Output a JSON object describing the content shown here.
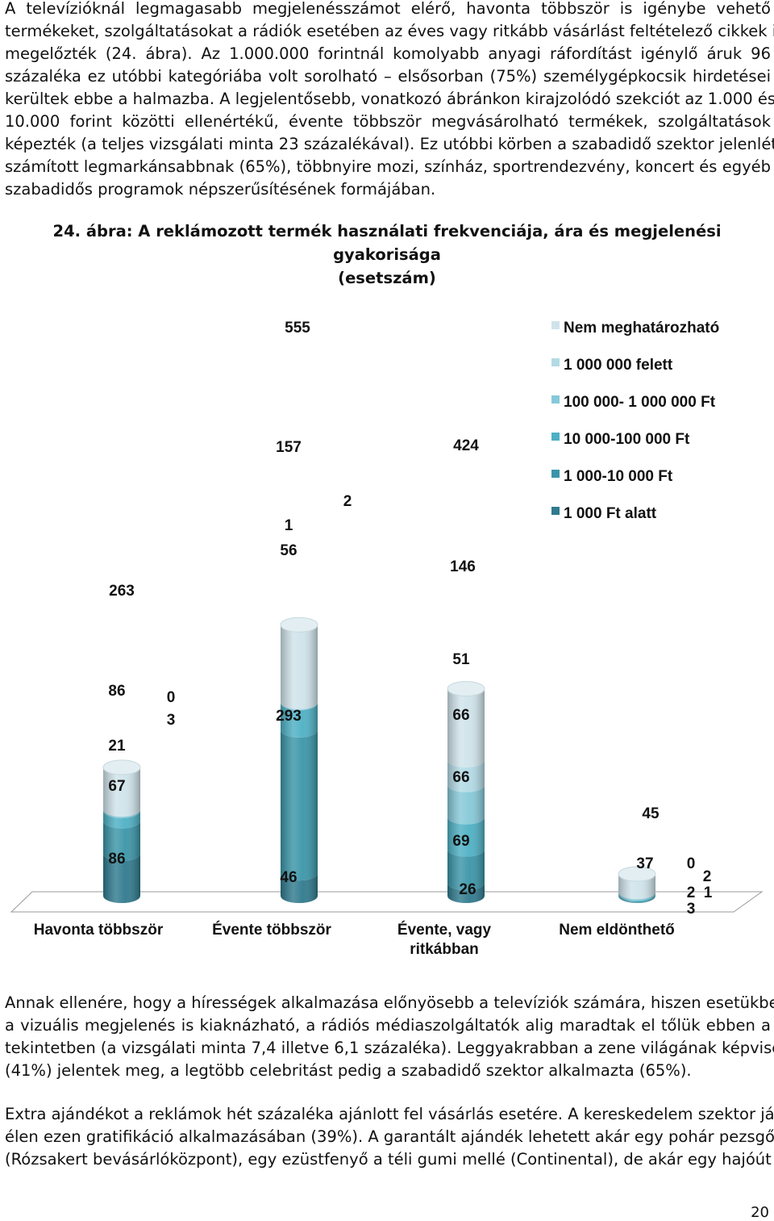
{
  "paragraphs": {
    "p1": [
      "A televízióknál legmagasabb megjelenésszámot elérő, havonta többször is igénybe vehető",
      "termékeket, szolgáltatásokat a rádiók esetében az éves vagy ritkább vásárlást feltételező cikkek is",
      "megelőzték (24. ábra). Az 1.000.000 forintnál komolyabb anyagi ráfordítást igénylő áruk 96",
      "százaléka ez utóbbi kategóriába volt sorolható – elsősorban (75%) személygépkocsik hirdetései",
      "kerültek ebbe a halmazba. A legjelentősebb, vonatkozó ábránkon kirajzolódó szekciót az 1.000 és",
      "10.000 forint közötti ellenértékű, évente többször megvásárolható termékek, szolgáltatások",
      "képezték (a teljes vizsgálati minta 23 százalékával). Ez utóbbi körben a szabadidő szektor jelenléte",
      "számított legmarkánsabbnak (65%), többnyire mozi, színház, sportrendezvény, koncert és egyéb",
      "szabadidős programok népszerűsítésének formájában."
    ],
    "p2": [
      "Annak ellenére, hogy a hírességek alkalmazása előnyösebb a televíziók számára, hiszen esetükben",
      "a vizuális megjelenés is kiaknázható, a rádiós médiaszolgáltatók alig maradtak el tőlük ebben a",
      "tekintetben (a vizsgálati minta 7,4 illetve 6,1 százaléka). Leggyakrabban a zene világának képviselői",
      "(41%) jelentek meg, a legtöbb celebritást pedig a szabadidő szektor alkalmazta (65%)."
    ],
    "p3": [
      "Extra ajándékot a reklámok hét százaléka ajánlott fel vásárlás esetére. A kereskedelem szektor járt",
      "élen ezen gratifikáció alkalmazásában (39%). A garantált ajándék lehetett akár egy pohár pezsgő",
      "(Rózsakert bevásárlóközpont), egy ezüstfenyő a téli gumi mellé (Continental), de akár egy hajóút a"
    ]
  },
  "figure": {
    "title_line1": "24. ábra: A reklámozott termék használati frekvenciája, ára és megjelenési gyakorisága",
    "title_line2": "(esetszám)"
  },
  "chart_data": {
    "type": "bar",
    "stacked": true,
    "style": "3d-cylinder",
    "categories": [
      "Havonta többször",
      "Évente többször",
      "Évente, vagy ritkábban",
      "Nem eldönthető"
    ],
    "totals": [
      263,
      555,
      424,
      45
    ],
    "series": [
      {
        "name": "1 000 Ft alatt",
        "values": [
          86,
          46,
          26,
          1
        ],
        "color": "#2f7a8e"
      },
      {
        "name": "1 000-10 000 Ft",
        "values": [
          67,
          293,
          69,
          2
        ],
        "color": "#3a95a8"
      },
      {
        "name": "10 000-100 000 Ft",
        "values": [
          21,
          56,
          66,
          2
        ],
        "color": "#4db0c4"
      },
      {
        "name": "100 000- 1 000 000 Ft",
        "values": [
          3,
          1,
          66,
          3
        ],
        "color": "#86c9d8"
      },
      {
        "name": "1 000 000 felett",
        "values": [
          0,
          2,
          51,
          0
        ],
        "color": "#b2dae5"
      },
      {
        "name": "Nem meghatározható",
        "values": [
          86,
          157,
          146,
          37
        ],
        "color": "#cfe3ea"
      }
    ],
    "legend_position": "right"
  },
  "page_number": "20"
}
